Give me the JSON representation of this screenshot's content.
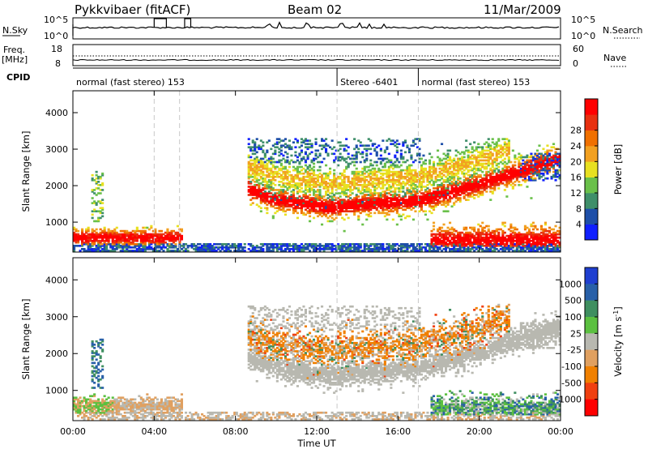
{
  "header": {
    "station": "Pykkvibaer (fitACF)",
    "beam": "Beam 02",
    "date": "11/Mar/2009"
  },
  "nsky": {
    "label": "N.Sky",
    "tick_top": "10^5",
    "tick_bottom": "10^0",
    "right_label": "N.Search",
    "right_tick_top": "10^5",
    "right_tick_bottom": "10^0"
  },
  "freq": {
    "label_line1": "Freq.",
    "label_line2": "[MHz]",
    "tick_top": "18",
    "tick_bottom": "8",
    "right_label": "Nave",
    "right_tick_top": "60",
    "right_tick_bottom": "0"
  },
  "cpid": {
    "label": "CPID",
    "segments": [
      {
        "start_h": 0.0,
        "end_h": 13.0,
        "text": "normal (fast stereo) 153"
      },
      {
        "start_h": 13.0,
        "end_h": 17.0,
        "text": "Stereo -6401"
      },
      {
        "start_h": 17.0,
        "end_h": 24.0,
        "text": "normal (fast stereo) 153"
      }
    ]
  },
  "chart_data": [
    {
      "type": "heatmap",
      "name": "power",
      "ylabel": "Slant Range [km]",
      "xlabel": "",
      "x_ticks": [
        "00:00",
        "04:00",
        "08:00",
        "12:00",
        "16:00",
        "20:00",
        "00:00"
      ],
      "x_tick_hours": [
        0,
        4,
        8,
        12,
        16,
        20,
        24
      ],
      "y_ticks": [
        1000,
        2000,
        3000,
        4000
      ],
      "ylim": [
        180,
        4600
      ],
      "colorbar": {
        "label": "Power [dB]",
        "ticks": [
          "4",
          "8",
          "12",
          "16",
          "20",
          "24",
          "28"
        ],
        "colors": [
          "#1020ff",
          "#1e4fa8",
          "#3f8f6a",
          "#6ac04a",
          "#e8e020",
          "#f2a020",
          "#f07000",
          "#e83010",
          "#ff0000"
        ]
      },
      "vlines_h": [
        4.0,
        5.25,
        13.0,
        17.0
      ]
    },
    {
      "type": "heatmap",
      "name": "velocity",
      "ylabel": "Slant Range [km]",
      "xlabel": "Time UT",
      "x_ticks": [
        "00:00",
        "04:00",
        "08:00",
        "12:00",
        "16:00",
        "20:00",
        "00:00"
      ],
      "x_tick_hours": [
        0,
        4,
        8,
        12,
        16,
        20,
        24
      ],
      "y_ticks": [
        1000,
        2000,
        3000,
        4000
      ],
      "ylim": [
        180,
        4600
      ],
      "colorbar": {
        "label": "Velocity [m s^-1]",
        "ticks": [
          "1000",
          "500",
          "100",
          "25",
          "-25",
          "-100",
          "-500",
          "-1000"
        ],
        "colors": [
          "#1f3fd0",
          "#2860a8",
          "#3f8f60",
          "#5bc040",
          "#b8b8b0",
          "#e0a060",
          "#f08000",
          "#f04010",
          "#ff0000"
        ]
      },
      "vlines_h": [
        13.0,
        17.0
      ]
    }
  ]
}
